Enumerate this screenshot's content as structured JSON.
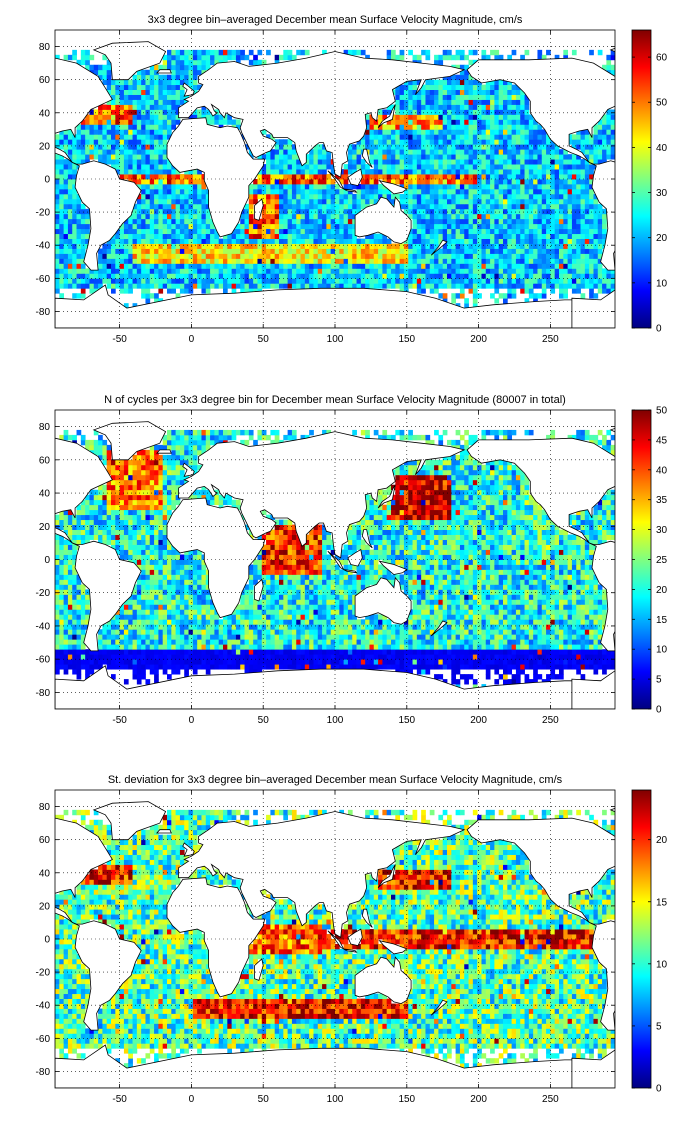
{
  "figure": {
    "background": "#ffffff",
    "colormap": "jet",
    "land_color": "#ffffff",
    "ocean_nodata_color": "#ffffff"
  },
  "chart_data": [
    {
      "type": "heatmap",
      "title": "3x3 degree bin–averaged December mean Surface Velocity Magnitude, cm/s",
      "xlabel": "",
      "ylabel": "",
      "xlim": [
        -95,
        295
      ],
      "ylim": [
        -90,
        90
      ],
      "xticks": [
        -50,
        0,
        50,
        100,
        150,
        200,
        250
      ],
      "yticks": [
        -80,
        -60,
        -40,
        -20,
        0,
        20,
        40,
        60,
        80
      ],
      "grid": true,
      "grid_style": "dotted",
      "colorbar": {
        "min": 0,
        "max": 66,
        "ticks": [
          0,
          10,
          20,
          30,
          40,
          50,
          60
        ]
      },
      "bin_size_deg": 3,
      "typical_value": 22,
      "features": [
        {
          "lon_range": [
            -60,
            200
          ],
          "lat_range": [
            -4,
            4
          ],
          "value": 55
        },
        {
          "lon_range": [
            125,
            175
          ],
          "lat_range": [
            30,
            40
          ],
          "value": 50
        },
        {
          "lon_range": [
            -80,
            -40
          ],
          "lat_range": [
            32,
            45
          ],
          "value": 55
        },
        {
          "lon_range": [
            -40,
            150
          ],
          "lat_range": [
            -50,
            -38
          ],
          "value": 45
        },
        {
          "lon_range": [
            40,
            60
          ],
          "lat_range": [
            -35,
            -10
          ],
          "value": 55
        }
      ]
    },
    {
      "type": "heatmap",
      "title": "N of cycles per 3x3 degree bin for December mean Surface Velocity Magnitude (80007 in total)",
      "xlabel": "",
      "ylabel": "",
      "xlim": [
        -95,
        295
      ],
      "ylim": [
        -90,
        90
      ],
      "xticks": [
        -50,
        0,
        50,
        100,
        150,
        200,
        250
      ],
      "yticks": [
        -80,
        -60,
        -40,
        -20,
        0,
        20,
        40,
        60,
        80
      ],
      "grid": true,
      "grid_style": "dotted",
      "colorbar": {
        "min": 0,
        "max": 50,
        "ticks": [
          0,
          5,
          10,
          15,
          20,
          25,
          30,
          35,
          40,
          45,
          50
        ]
      },
      "bin_size_deg": 3,
      "typical_value": 20,
      "features": [
        {
          "lon_range": [
            140,
            180
          ],
          "lat_range": [
            25,
            50
          ],
          "value": 50
        },
        {
          "lon_range": [
            -60,
            -20
          ],
          "lat_range": [
            30,
            65
          ],
          "value": 40
        },
        {
          "lon_range": [
            50,
            90
          ],
          "lat_range": [
            -10,
            20
          ],
          "value": 45
        },
        {
          "lon_range": [
            -95,
            295
          ],
          "lat_range": [
            -75,
            -55
          ],
          "value": 6
        }
      ]
    },
    {
      "type": "heatmap",
      "title": "St. deviation for 3x3 degree bin–averaged December mean Surface Velocity Magnitude, cm/s",
      "xlabel": "",
      "ylabel": "",
      "xlim": [
        -95,
        295
      ],
      "ylim": [
        -90,
        90
      ],
      "xticks": [
        -50,
        0,
        50,
        100,
        150,
        200,
        250
      ],
      "yticks": [
        -80,
        -60,
        -40,
        -20,
        0,
        20,
        40,
        60,
        80
      ],
      "grid": true,
      "grid_style": "dotted",
      "colorbar": {
        "min": 0,
        "max": 24,
        "ticks": [
          0,
          5,
          10,
          15,
          20
        ]
      },
      "bin_size_deg": 3,
      "typical_value": 11,
      "features": [
        {
          "lon_range": [
            40,
            280
          ],
          "lat_range": [
            -5,
            5
          ],
          "value": 22
        },
        {
          "lon_range": [
            130,
            180
          ],
          "lat_range": [
            30,
            42
          ],
          "value": 22
        },
        {
          "lon_range": [
            -80,
            -40
          ],
          "lat_range": [
            32,
            45
          ],
          "value": 22
        },
        {
          "lon_range": [
            0,
            150
          ],
          "lat_range": [
            -48,
            -36
          ],
          "value": 22
        },
        {
          "lon_range": [
            40,
            90
          ],
          "lat_range": [
            -10,
            10
          ],
          "value": 20
        }
      ]
    }
  ]
}
